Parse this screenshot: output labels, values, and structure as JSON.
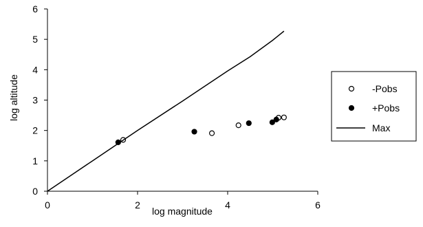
{
  "chart_data": {
    "type": "scatter",
    "xlabel": "log magnitude",
    "ylabel": "log altitude",
    "xlim": [
      0,
      6
    ],
    "ylim": [
      0,
      6
    ],
    "xticks": [
      0,
      2,
      4,
      6
    ],
    "yticks": [
      0,
      1,
      2,
      3,
      4,
      5,
      6
    ],
    "grid": false,
    "legend_position": "right",
    "series": [
      {
        "name": "-Pobs",
        "marker": "open-circle",
        "color": "#000000",
        "x": [
          1.68,
          3.65,
          4.24,
          5.13,
          5.25
        ],
        "y": [
          1.69,
          1.91,
          2.17,
          2.42,
          2.43
        ]
      },
      {
        "name": "+Pobs",
        "marker": "filled-circle",
        "color": "#000000",
        "x": [
          1.57,
          3.26,
          4.47,
          4.99,
          5.08
        ],
        "y": [
          1.61,
          1.96,
          2.24,
          2.27,
          2.36
        ]
      },
      {
        "name": "Max",
        "marker": "line",
        "color": "#000000",
        "x": [
          0,
          1,
          2,
          3,
          4,
          4.5,
          5,
          5.1,
          5.25
        ],
        "y": [
          0,
          1.0,
          2.0,
          2.97,
          3.96,
          4.43,
          4.97,
          5.09,
          5.27
        ]
      }
    ]
  }
}
